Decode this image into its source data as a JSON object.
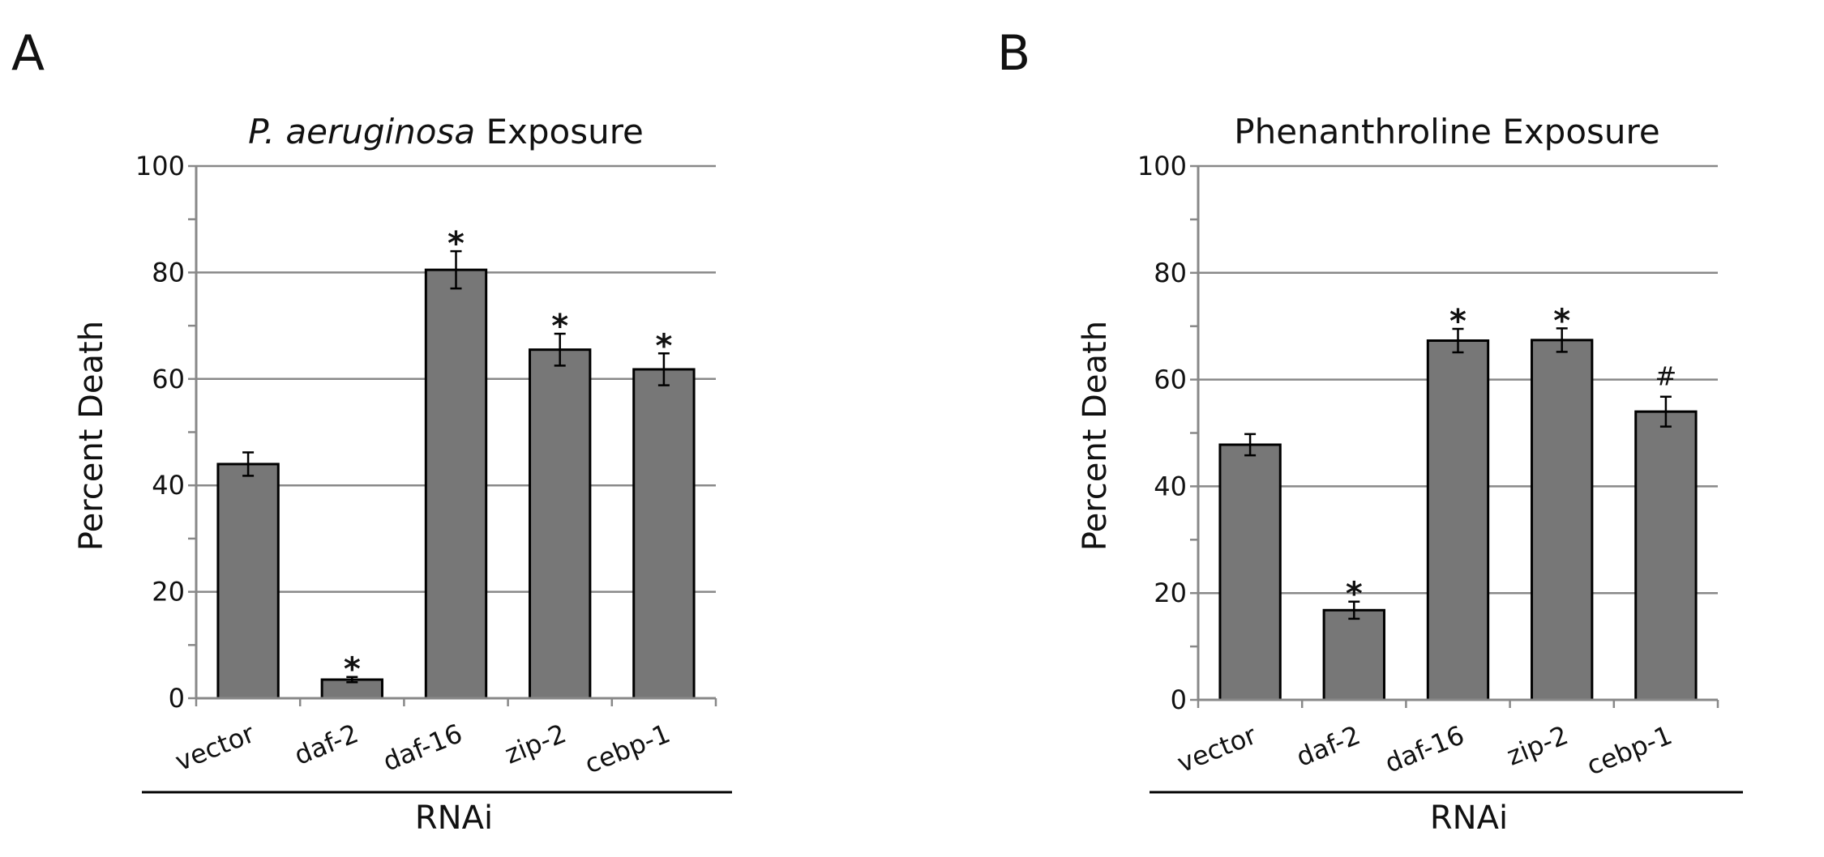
{
  "figure": {
    "panels": [
      {
        "letter": "A"
      },
      {
        "letter": "B"
      }
    ],
    "colors": {
      "bar_fill": "#777777",
      "bar_stroke": "#000000",
      "grid": "#888888",
      "text": "#111111"
    }
  },
  "chart_data": [
    {
      "type": "bar",
      "panel": "A",
      "title": "P. aeruginosa Exposure",
      "title_parts": {
        "italic": "P. aeruginosa",
        "normal": " Exposure"
      },
      "xlabel": "RNAi",
      "ylabel": "Percent Death",
      "ylim": [
        0,
        100
      ],
      "yticks": [
        0,
        20,
        40,
        60,
        80,
        100
      ],
      "yticks_labels": [
        "0",
        "20",
        "40",
        "60",
        "80",
        "100"
      ],
      "grid": true,
      "categories": [
        "vector",
        "daf-2",
        "daf-16",
        "zip-2",
        "cebp-1"
      ],
      "values": [
        44,
        3.5,
        80.5,
        65.5,
        61.8
      ],
      "errors": [
        2.2,
        0.5,
        3.5,
        3.0,
        3.0
      ],
      "significance": [
        "",
        "*",
        "*",
        "*",
        "*"
      ]
    },
    {
      "type": "bar",
      "panel": "B",
      "title": "Phenanthroline Exposure",
      "xlabel": "RNAi",
      "ylabel": "Percent Death",
      "ylim": [
        0,
        100
      ],
      "yticks": [
        0,
        20,
        40,
        60,
        80,
        100
      ],
      "yticks_labels": [
        "0",
        "20",
        "40",
        "60",
        "80",
        "100"
      ],
      "grid": true,
      "categories": [
        "vector",
        "daf-2",
        "daf-16",
        "zip-2",
        "cebp-1"
      ],
      "values": [
        47.8,
        16.8,
        67.3,
        67.4,
        54.0
      ],
      "errors": [
        2.0,
        1.6,
        2.2,
        2.2,
        2.8
      ],
      "significance": [
        "",
        "*",
        "*",
        "*",
        "#"
      ]
    }
  ]
}
